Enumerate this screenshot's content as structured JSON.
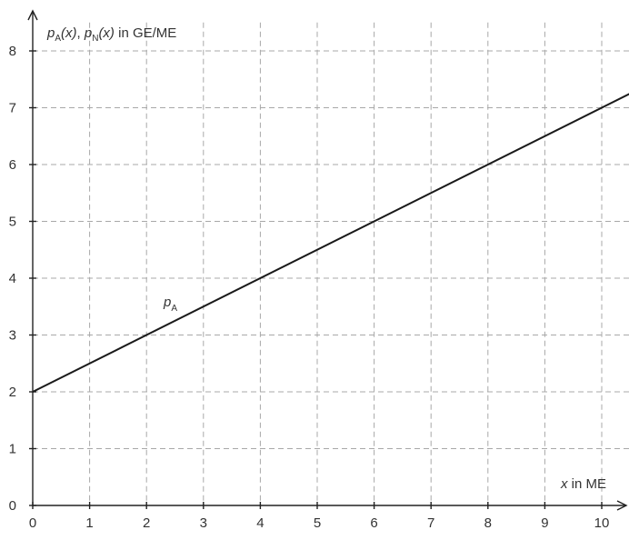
{
  "chart_data": {
    "type": "line",
    "title": "",
    "xlabel": {
      "var": "x",
      "text": " in ME"
    },
    "ylabel": {
      "p1": "p",
      "sub1": "A",
      "arg1": "(x)",
      "sep": ", ",
      "p2": "p",
      "sub2": "N",
      "arg2": "(x)",
      "text": " in GE/ME"
    },
    "xlim": [
      0,
      10.5
    ],
    "ylim": [
      0,
      8.5
    ],
    "xticks": [
      0,
      1,
      2,
      3,
      4,
      5,
      6,
      7,
      8,
      9,
      10
    ],
    "yticks": [
      0,
      1,
      2,
      3,
      4,
      5,
      6,
      7,
      8
    ],
    "grid": true,
    "series": [
      {
        "name": "p_A",
        "label_main": "p",
        "label_sub": "A",
        "x": [
          0,
          10.5
        ],
        "y": [
          2,
          7.25
        ],
        "color": "#1a1a1a"
      }
    ]
  }
}
